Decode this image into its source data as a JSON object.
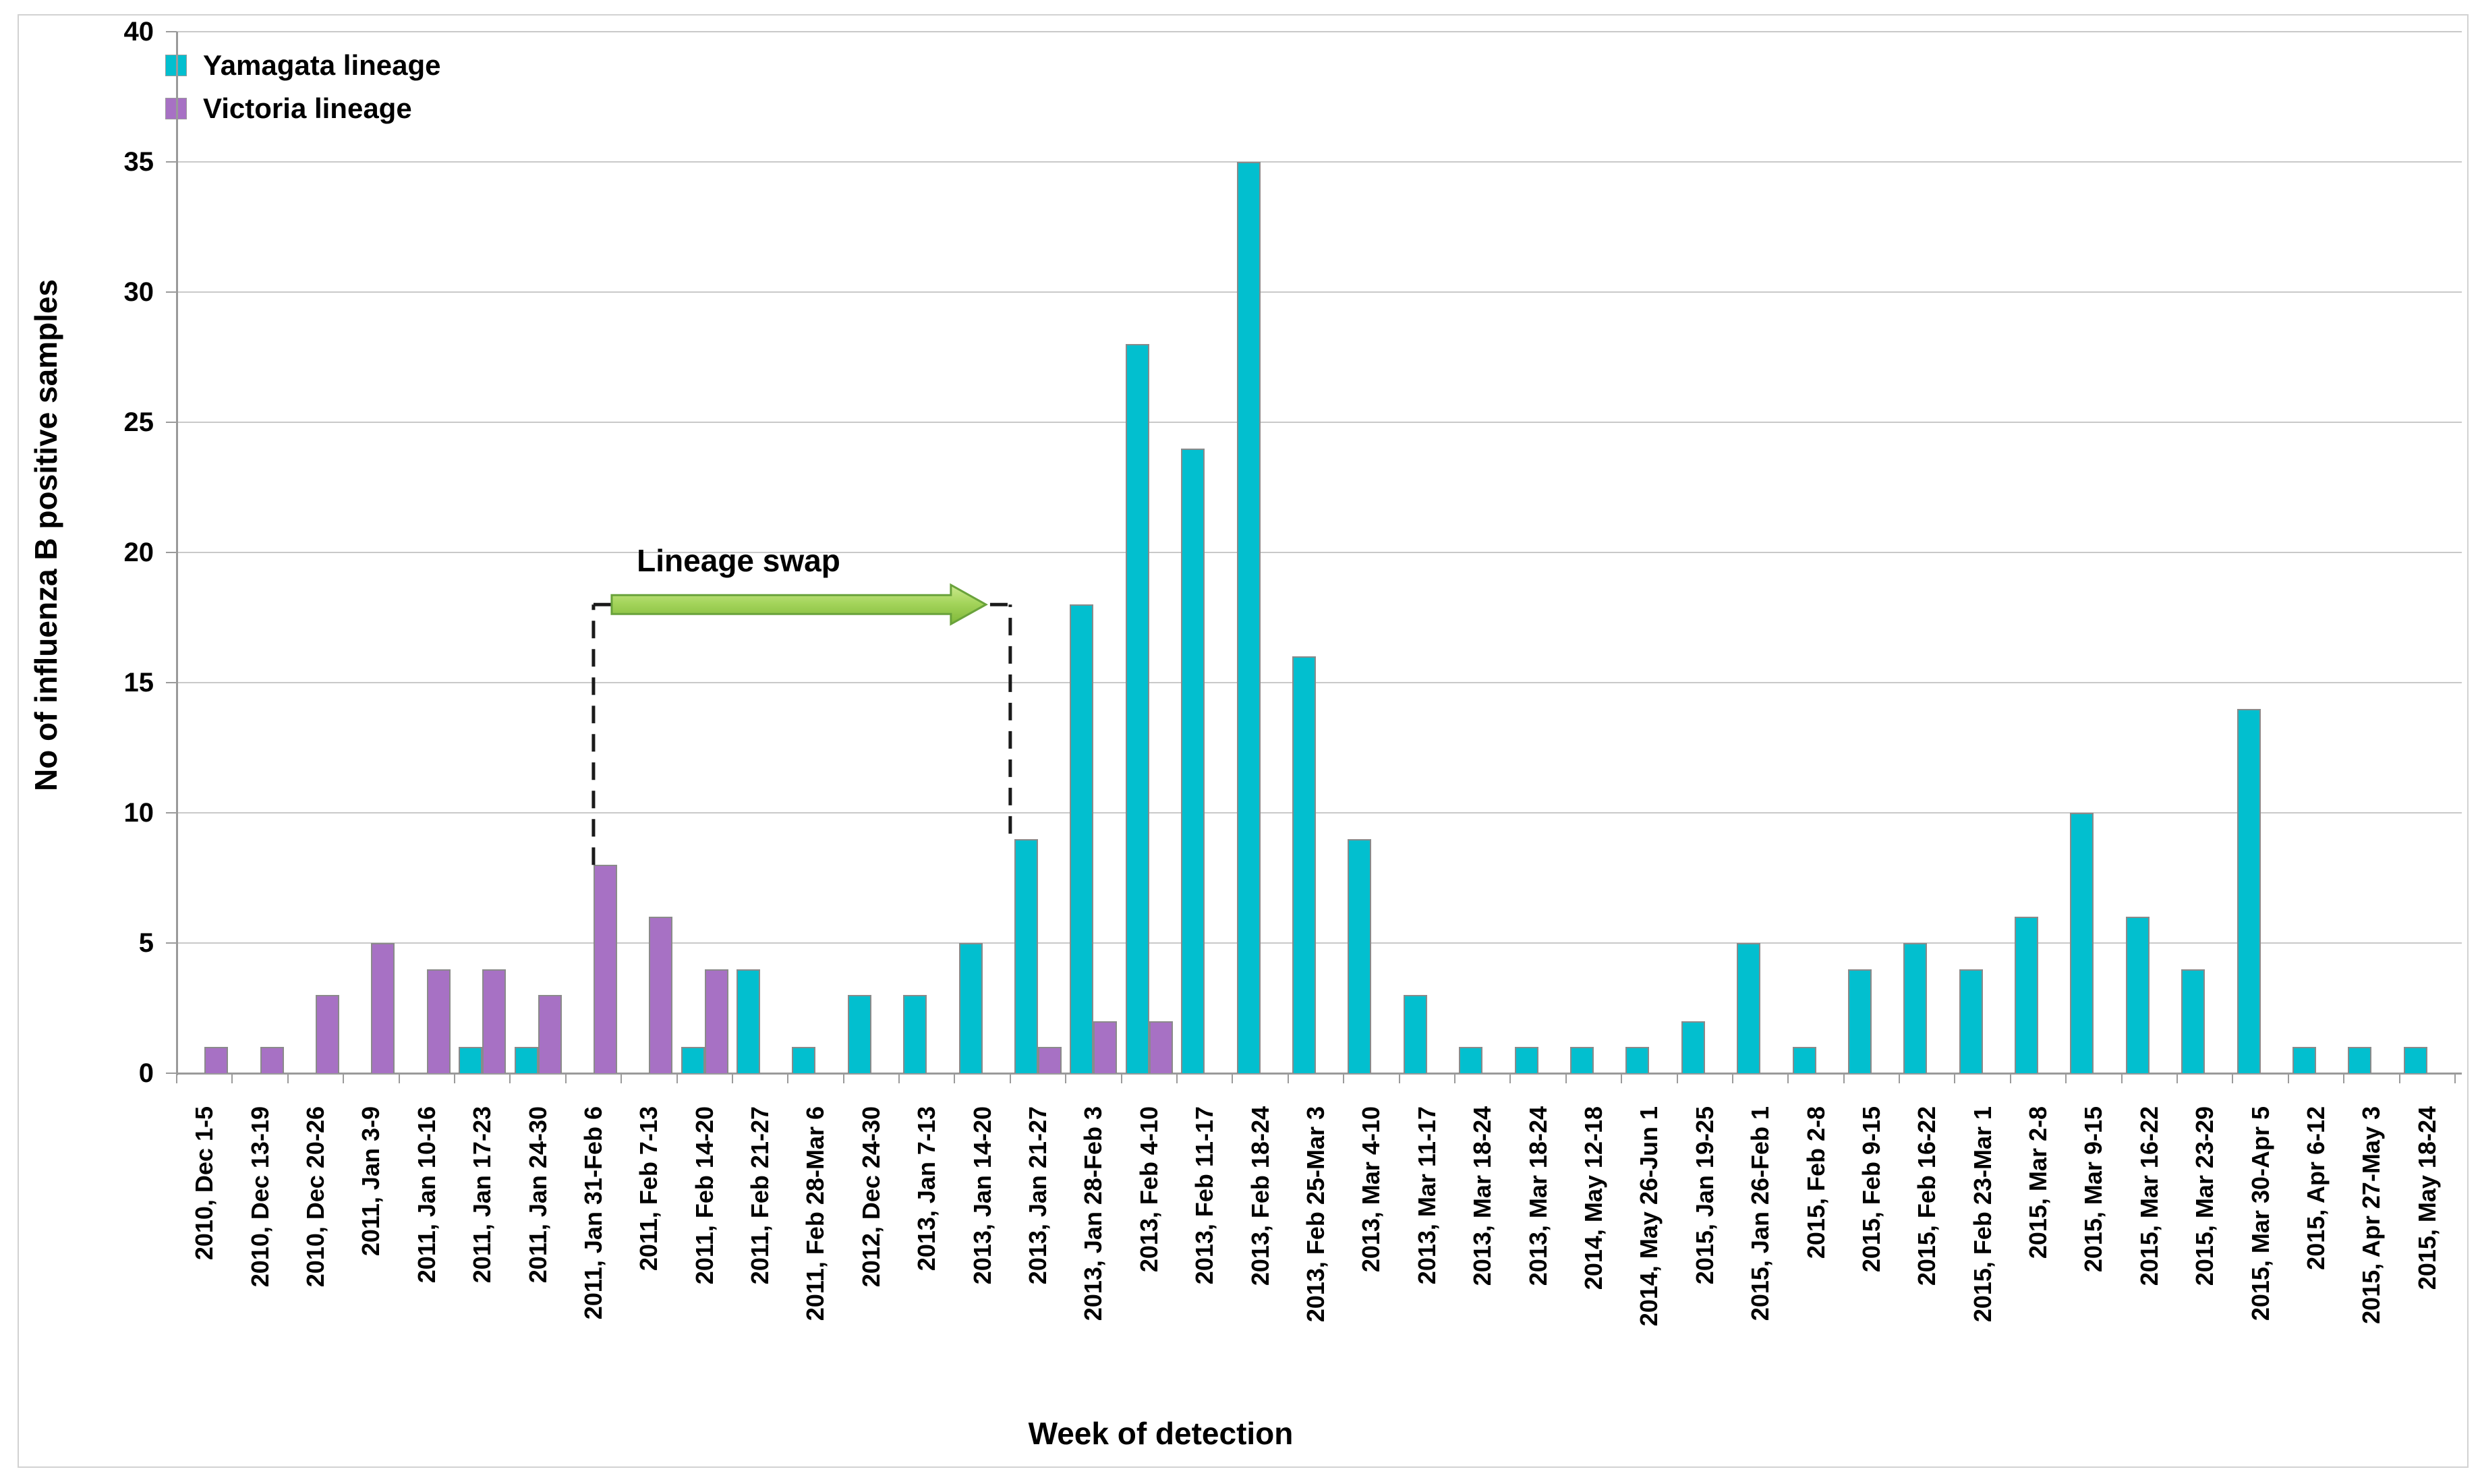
{
  "figure": {
    "y_axis_title": "No of influenza B positive samples",
    "x_axis_title": "Week of detection"
  },
  "chart_data": {
    "type": "bar",
    "title": "",
    "xlabel": "Week of detection",
    "ylabel": "No of influenza B positive samples",
    "ylim": [
      0,
      40
    ],
    "yticks": [
      0,
      5,
      10,
      15,
      20,
      25,
      30,
      35,
      40
    ],
    "grid": "horizontal",
    "legend_position": "top-left-inside",
    "categories": [
      "2010, Dec 1-5",
      "2010, Dec 13-19",
      "2010, Dec 20-26",
      "2011, Jan 3-9",
      "2011, Jan 10-16",
      "2011, Jan 17-23",
      "2011, Jan 24-30",
      "2011, Jan 31-Feb 6",
      "2011, Feb 7-13",
      "2011, Feb 14-20",
      "2011, Feb 21-27",
      "2011, Feb 28-Mar 6",
      "2012, Dec 24-30",
      "2013, Jan 7-13",
      "2013, Jan 14-20",
      "2013, Jan 21-27",
      "2013, Jan 28-Feb 3",
      "2013, Feb 4-10",
      "2013, Feb 11-17",
      "2013, Feb 18-24",
      "2013, Feb 25-Mar 3",
      "2013, Mar 4-10",
      "2013, Mar 11-17",
      "2013, Mar 18-24",
      "2013, Mar 18-24",
      "2014, May 12-18",
      "2014, May 26-Jun 1",
      "2015, Jan 19-25",
      "2015, Jan 26-Feb 1",
      "2015, Feb 2-8",
      "2015, Feb 9-15",
      "2015, Feb 16-22",
      "2015, Feb 23-Mar 1",
      "2015, Mar 2-8",
      "2015, Mar 9-15",
      "2015, Mar 16-22",
      "2015, Mar 23-29",
      "2015, Mar 30-Apr 5",
      "2015, Apr 6-12",
      "2015, Apr 27-May 3",
      "2015, May 18-24"
    ],
    "series": [
      {
        "name": "Yamagata lineage",
        "color": "#02bfcf",
        "values": [
          0,
          0,
          0,
          0,
          0,
          1,
          1,
          0,
          0,
          1,
          4,
          1,
          3,
          3,
          5,
          9,
          18,
          28,
          24,
          35,
          16,
          9,
          3,
          1,
          1,
          1,
          1,
          2,
          5,
          1,
          4,
          5,
          4,
          6,
          10,
          6,
          4,
          14,
          1,
          1,
          1
        ]
      },
      {
        "name": "Victoria lineage",
        "color": "#a771c4",
        "values": [
          1,
          1,
          3,
          5,
          4,
          4,
          3,
          8,
          6,
          4,
          0,
          0,
          0,
          0,
          0,
          1,
          2,
          2,
          0,
          0,
          0,
          0,
          0,
          0,
          0,
          0,
          0,
          0,
          0,
          0,
          0,
          0,
          0,
          0,
          0,
          0,
          0,
          0,
          0,
          0,
          0
        ]
      }
    ],
    "annotation": {
      "text": "Lineage swap",
      "from_category": "2011, Jan 31-Feb 6",
      "to_category": "2013, Jan 21-27",
      "arrow_color": "#8dc63f",
      "bracket_style": "dashed"
    }
  }
}
